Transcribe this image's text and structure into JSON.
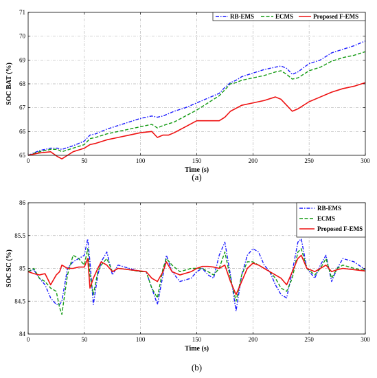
{
  "chart_data": [
    {
      "type": "line",
      "caption": "(a)",
      "xlabel": "Time (s)",
      "ylabel": "SOC BAT (%)",
      "xlim": [
        0,
        300
      ],
      "ylim": [
        65,
        71
      ],
      "xticks": [
        0,
        50,
        100,
        150,
        200,
        250,
        300
      ],
      "yticks": [
        65,
        66,
        67,
        68,
        69,
        70,
        71
      ],
      "grid": true,
      "legend_position": "top-right",
      "series": [
        {
          "name": "RB-EMS",
          "color": "#1a1aff",
          "dash": "dash-dot",
          "x": [
            0,
            10,
            20,
            26,
            30,
            40,
            50,
            55,
            60,
            70,
            80,
            90,
            100,
            110,
            115,
            120,
            130,
            140,
            150,
            160,
            170,
            175,
            180,
            185,
            190,
            200,
            210,
            220,
            225,
            230,
            235,
            240,
            250,
            260,
            270,
            280,
            290,
            300
          ],
          "y": [
            65.0,
            65.2,
            65.3,
            65.3,
            65.25,
            65.4,
            65.6,
            65.85,
            65.9,
            66.1,
            66.25,
            66.4,
            66.55,
            66.65,
            66.6,
            66.65,
            66.85,
            67.0,
            67.2,
            67.4,
            67.6,
            67.85,
            68.05,
            68.15,
            68.3,
            68.45,
            68.6,
            68.7,
            68.75,
            68.65,
            68.4,
            68.5,
            68.85,
            69.0,
            69.3,
            69.45,
            69.6,
            69.8
          ]
        },
        {
          "name": "ECMS",
          "color": "#139a13",
          "dash": "dashed",
          "x": [
            0,
            10,
            20,
            26,
            30,
            40,
            50,
            55,
            60,
            70,
            80,
            90,
            100,
            110,
            115,
            120,
            130,
            140,
            150,
            160,
            170,
            175,
            180,
            185,
            190,
            200,
            210,
            220,
            225,
            230,
            235,
            240,
            250,
            260,
            270,
            280,
            290,
            300
          ],
          "y": [
            65.0,
            65.15,
            65.25,
            65.25,
            65.15,
            65.3,
            65.45,
            65.7,
            65.75,
            65.9,
            66.0,
            66.1,
            66.2,
            66.3,
            66.15,
            66.25,
            66.4,
            66.65,
            66.9,
            67.2,
            67.5,
            67.75,
            68.0,
            68.05,
            68.15,
            68.25,
            68.35,
            68.5,
            68.55,
            68.4,
            68.2,
            68.25,
            68.55,
            68.7,
            68.95,
            69.1,
            69.2,
            69.35
          ]
        },
        {
          "name": "Proposed F-EMS",
          "color": "#ee1111",
          "dash": "solid",
          "x": [
            0,
            10,
            20,
            26,
            30,
            35,
            40,
            50,
            55,
            60,
            70,
            80,
            90,
            100,
            110,
            115,
            120,
            125,
            130,
            140,
            150,
            160,
            170,
            175,
            180,
            190,
            200,
            210,
            220,
            225,
            230,
            235,
            240,
            250,
            260,
            270,
            280,
            290,
            300
          ],
          "y": [
            65.0,
            65.1,
            65.15,
            64.95,
            64.85,
            65.0,
            65.15,
            65.3,
            65.45,
            65.5,
            65.65,
            65.75,
            65.85,
            65.95,
            66.0,
            65.75,
            65.85,
            65.85,
            65.95,
            66.2,
            66.45,
            66.45,
            66.45,
            66.6,
            66.85,
            67.1,
            67.2,
            67.3,
            67.45,
            67.35,
            67.1,
            66.85,
            66.95,
            67.25,
            67.45,
            67.65,
            67.8,
            67.9,
            68.05
          ]
        }
      ]
    },
    {
      "type": "line",
      "caption": "(b)",
      "xlabel": "Time (s)",
      "ylabel": "SOC SC (%)",
      "xlim": [
        0,
        300
      ],
      "ylim": [
        84,
        86
      ],
      "xticks": [
        0,
        50,
        100,
        150,
        200,
        250,
        300
      ],
      "yticks": [
        84,
        84.5,
        85,
        85.5,
        86
      ],
      "grid": true,
      "legend_position": "top-right",
      "series": [
        {
          "name": "RB-EMS",
          "color": "#1a1aff",
          "dash": "dash-dot",
          "x": [
            0,
            5,
            10,
            15,
            20,
            25,
            28,
            30,
            35,
            40,
            45,
            50,
            53,
            55,
            58,
            62,
            65,
            70,
            75,
            80,
            90,
            100,
            105,
            110,
            115,
            120,
            123,
            128,
            135,
            145,
            150,
            155,
            160,
            165,
            170,
            175,
            180,
            185,
            190,
            195,
            200,
            205,
            210,
            215,
            220,
            225,
            230,
            235,
            240,
            243,
            248,
            255,
            260,
            265,
            270,
            275,
            280,
            290,
            300
          ],
          "y": [
            84.95,
            84.98,
            84.85,
            84.75,
            84.55,
            84.45,
            84.45,
            84.5,
            85.0,
            85.1,
            85.15,
            85.2,
            85.45,
            85.1,
            84.45,
            84.9,
            85.1,
            85.25,
            84.9,
            85.05,
            85.0,
            84.95,
            84.95,
            84.7,
            84.45,
            84.9,
            85.2,
            84.95,
            84.8,
            84.85,
            84.95,
            85.0,
            84.9,
            84.85,
            85.2,
            85.4,
            84.9,
            84.35,
            84.9,
            85.2,
            85.3,
            85.25,
            85.05,
            84.95,
            84.75,
            84.6,
            84.55,
            84.95,
            85.4,
            85.45,
            85.0,
            84.85,
            85.05,
            85.2,
            84.8,
            85.0,
            85.15,
            85.1,
            84.98
          ]
        },
        {
          "name": "ECMS",
          "color": "#139a13",
          "dash": "dashed",
          "x": [
            0,
            5,
            10,
            15,
            20,
            25,
            28,
            30,
            35,
            40,
            45,
            50,
            53,
            55,
            58,
            62,
            65,
            70,
            75,
            80,
            90,
            100,
            105,
            110,
            115,
            120,
            123,
            128,
            135,
            145,
            150,
            155,
            160,
            165,
            170,
            175,
            180,
            185,
            190,
            195,
            200,
            205,
            210,
            215,
            220,
            225,
            230,
            235,
            240,
            243,
            248,
            255,
            260,
            265,
            270,
            275,
            280,
            290,
            300
          ],
          "y": [
            84.95,
            85.0,
            84.85,
            84.8,
            84.7,
            84.65,
            84.4,
            84.3,
            84.9,
            85.2,
            85.15,
            85.05,
            85.3,
            84.9,
            84.6,
            84.95,
            85.05,
            85.15,
            84.95,
            85.0,
            84.98,
            84.95,
            84.95,
            84.7,
            84.55,
            85.0,
            85.15,
            85.05,
            84.95,
            85.0,
            85.0,
            85.0,
            84.95,
            84.9,
            85.0,
            85.25,
            84.85,
            84.5,
            84.9,
            85.1,
            85.1,
            85.05,
            85.0,
            84.95,
            84.85,
            84.7,
            84.65,
            84.85,
            85.25,
            85.3,
            85.0,
            84.9,
            85.0,
            85.15,
            84.85,
            85.0,
            85.05,
            85.0,
            84.97
          ]
        },
        {
          "name": "Proposed F-EMS",
          "color": "#ee1111",
          "dash": "solid",
          "x": [
            0,
            5,
            10,
            15,
            20,
            25,
            28,
            30,
            35,
            40,
            45,
            50,
            53,
            55,
            58,
            62,
            65,
            70,
            75,
            80,
            90,
            100,
            105,
            110,
            115,
            120,
            123,
            128,
            135,
            145,
            150,
            155,
            160,
            165,
            170,
            175,
            180,
            185,
            190,
            195,
            200,
            205,
            210,
            215,
            220,
            225,
            230,
            235,
            240,
            243,
            248,
            255,
            260,
            265,
            270,
            275,
            280,
            290,
            300
          ],
          "y": [
            84.95,
            84.92,
            84.9,
            84.92,
            84.75,
            84.9,
            84.95,
            85.05,
            85.0,
            85.0,
            85.02,
            85.02,
            85.15,
            84.7,
            84.85,
            85.0,
            85.1,
            85.05,
            84.95,
            85.0,
            84.98,
            84.96,
            84.95,
            84.85,
            84.8,
            84.95,
            85.1,
            84.95,
            84.9,
            84.95,
            85.0,
            85.03,
            85.03,
            85.02,
            85.0,
            85.05,
            84.8,
            84.6,
            84.8,
            85.0,
            85.08,
            85.05,
            85.0,
            84.95,
            84.9,
            84.85,
            84.75,
            84.95,
            85.15,
            85.2,
            85.0,
            84.95,
            85.0,
            85.05,
            84.95,
            84.98,
            85.0,
            84.98,
            84.96
          ]
        }
      ]
    }
  ]
}
